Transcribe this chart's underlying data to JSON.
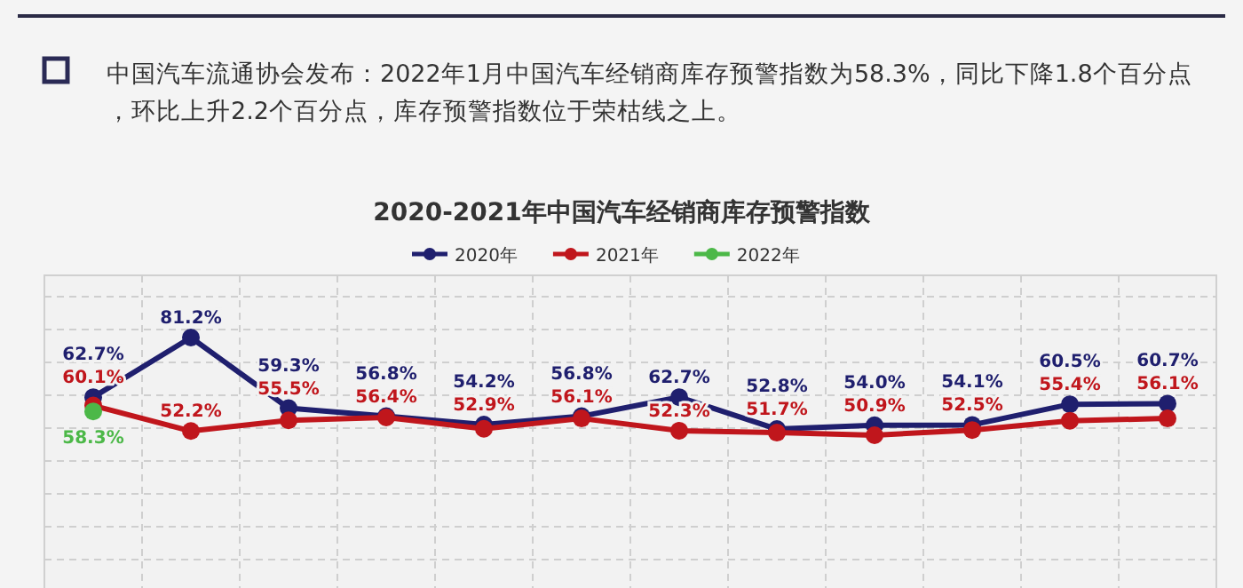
{
  "chart_data": {
    "type": "line",
    "title": "2020-2021年中国汽车经销商库存预警指数",
    "annotations": [
      "中国汽车流通协会发布：2022年1月中国汽车经销商库存预警指数为58.3%，同比下降1.8个百分点，环比上升2.2个百分点，库存预警指数位于荣枯线之上。"
    ],
    "categories": [
      null,
      null,
      null,
      null,
      null,
      null,
      null,
      null,
      null,
      null,
      null,
      null
    ],
    "series": [
      {
        "name": "2020年",
        "color": "#1f1f6e",
        "values": [
          62.7,
          81.2,
          59.3,
          56.8,
          54.2,
          56.8,
          62.7,
          52.8,
          54.0,
          54.1,
          60.5,
          60.7
        ],
        "value_labels": [
          "62.7%",
          "81.2%",
          "59.3%",
          "56.8%",
          "54.2%",
          "56.8%",
          "62.7%",
          "52.8%",
          "54.0%",
          "54.1%",
          "60.5%",
          "60.7%"
        ]
      },
      {
        "name": "2021年",
        "color": "#c0161c",
        "values": [
          60.1,
          52.2,
          55.5,
          56.4,
          52.9,
          56.1,
          52.3,
          51.7,
          50.9,
          52.5,
          55.4,
          56.1
        ],
        "value_labels": [
          "60.1%",
          "52.2%",
          "55.5%",
          "56.4%",
          "52.9%",
          "56.1%",
          "52.3%",
          "51.7%",
          "50.9%",
          "52.5%",
          "55.4%",
          "56.1%"
        ]
      },
      {
        "name": "2022年",
        "color": "#4cb848",
        "values": [
          58.3,
          null,
          null,
          null,
          null,
          null,
          null,
          null,
          null,
          null,
          null,
          null
        ],
        "value_labels": [
          "58.3%",
          null,
          null,
          null,
          null,
          null,
          null,
          null,
          null,
          null,
          null,
          null
        ]
      }
    ],
    "marker": "circle",
    "line_style": "solid",
    "grid": true,
    "legend": "top",
    "tick_labels": false
  }
}
